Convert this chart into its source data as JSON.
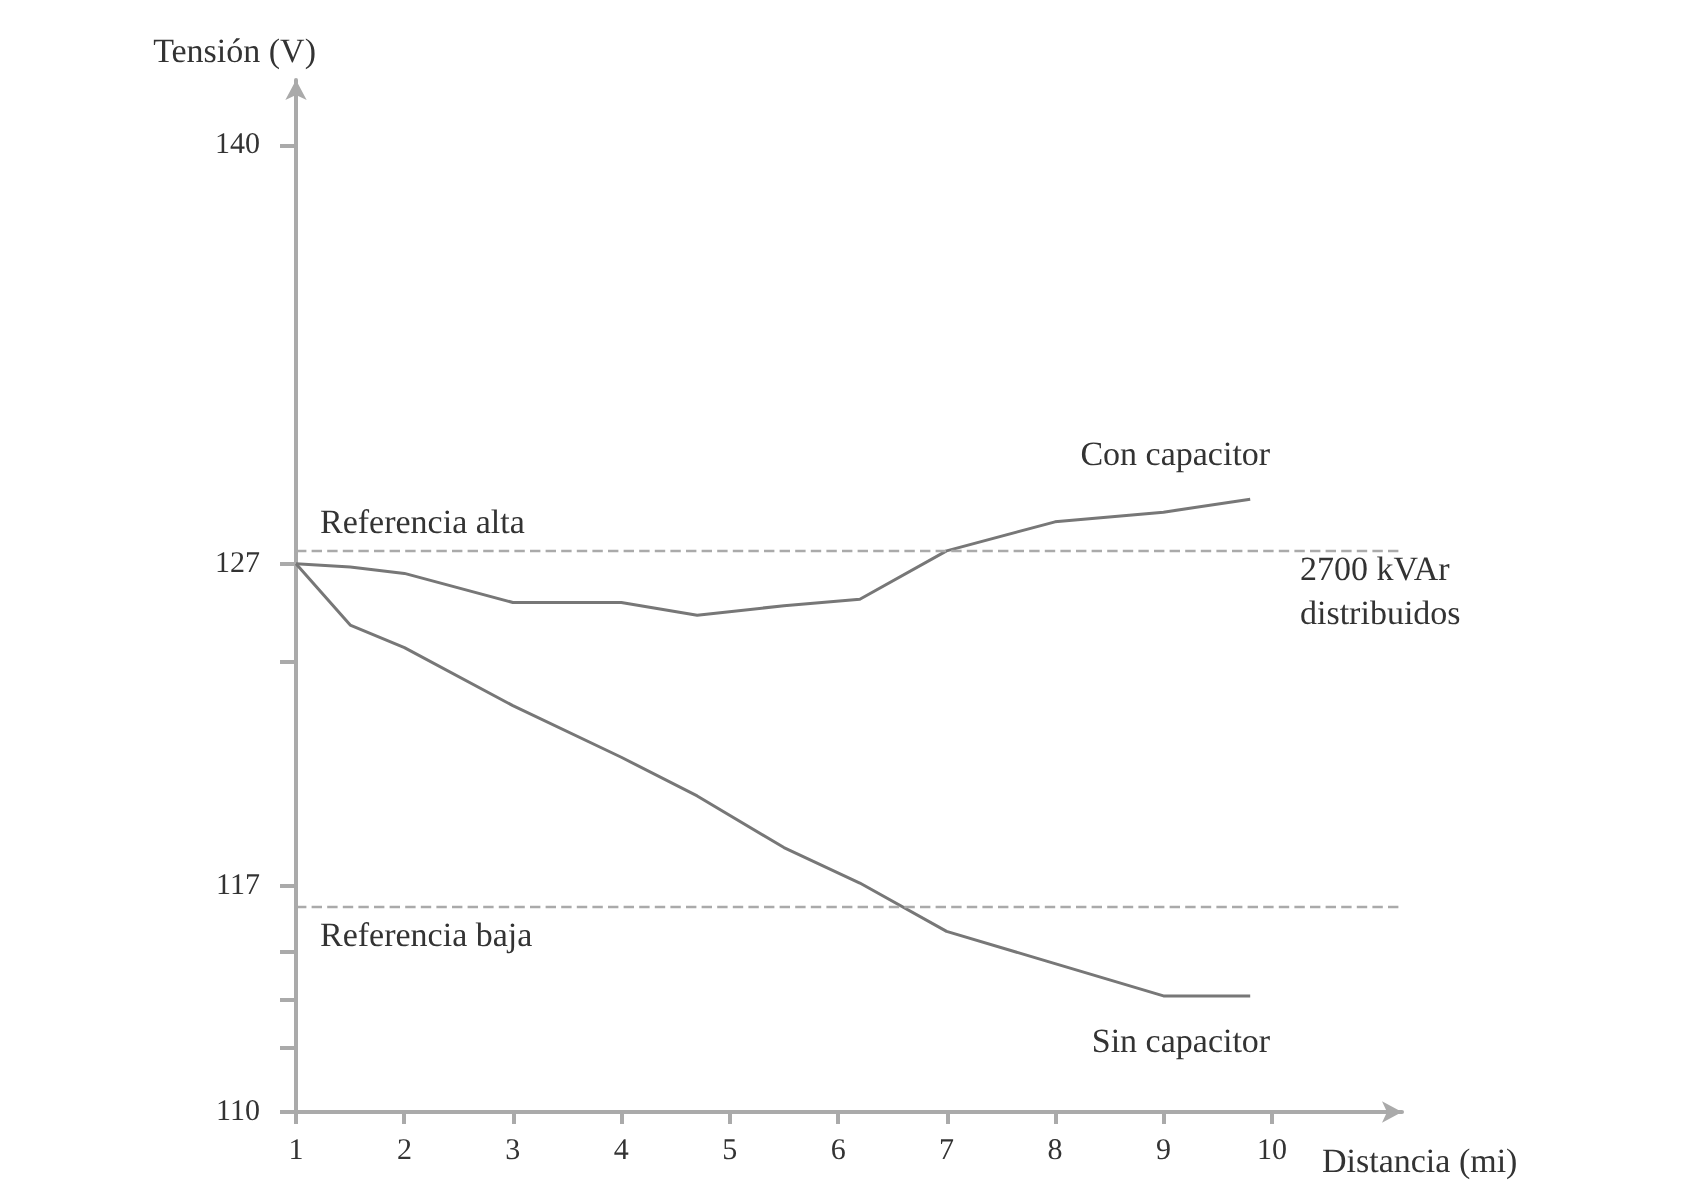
{
  "chart_data": {
    "type": "line",
    "xlabel": "Distancia (mi)",
    "ylabel": "Tensión (V)",
    "x": [
      1,
      1.5,
      2,
      3,
      4,
      4.7,
      5.5,
      6.2,
      7,
      8,
      9,
      9.8
    ],
    "series": [
      {
        "name": "Con capacitor",
        "color": "#777777",
        "values": [
          127,
          126.9,
          126.7,
          125.8,
          125.8,
          125.4,
          125.7,
          125.9,
          127.4,
          128.3,
          128.6,
          129
        ]
      },
      {
        "name": "Sin capacitor",
        "color": "#777777",
        "values": [
          127,
          125.1,
          124.4,
          122.6,
          121,
          119.8,
          118.2,
          117.1,
          115.6,
          114.6,
          113.6,
          113.6
        ]
      }
    ],
    "xlim": [
      1,
      11.2
    ],
    "xticks": [
      1,
      2,
      3,
      4,
      5,
      6,
      7,
      8,
      9,
      10
    ],
    "ylim": [
      110,
      142
    ],
    "yticks": [
      110,
      {
        "value": 112,
        "label": null
      },
      {
        "value": 113.5,
        "label": null
      },
      {
        "value": 115,
        "label": null
      },
      117,
      {
        "value": 124,
        "label": null
      },
      127,
      140
    ],
    "ref_lines": [
      {
        "axis": "y",
        "value": 127.4,
        "label": "Referencia alta",
        "color": "#aaaaaa",
        "line_style": "dashed"
      },
      {
        "axis": "y",
        "value": 116.4,
        "label": "Referencia baja",
        "color": "#aaaaaa",
        "line_style": "dashed"
      }
    ],
    "annotations": [
      "2700 kVAr\ndistribuidos"
    ],
    "marker": "none",
    "line_style": "solid",
    "grid": false,
    "legend": false
  }
}
